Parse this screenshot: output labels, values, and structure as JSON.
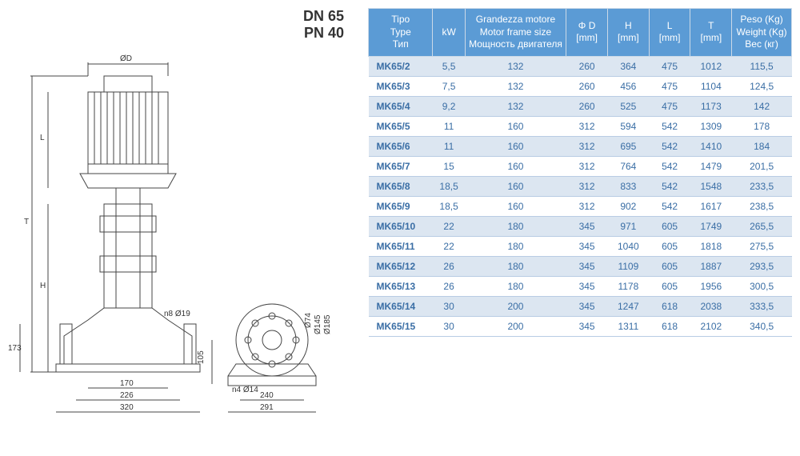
{
  "header": {
    "dn": "DN 65",
    "pn": "PN 40"
  },
  "table": {
    "header_bg": "#5b9bd5",
    "header_color": "#ffffff",
    "row_odd_bg": "#dce6f1",
    "row_even_bg": "#ffffff",
    "cell_text_color": "#3a6ea5",
    "border_color": "#b8cce4",
    "columns": [
      {
        "key": "type",
        "label": "Tipo\nType\nТип",
        "width": "14%"
      },
      {
        "key": "kw",
        "label": "kW",
        "width": "7%"
      },
      {
        "key": "motor",
        "label": "Grandezza motore\nMotor frame size\nМощность двигателя",
        "width": "22%"
      },
      {
        "key": "phid",
        "label": "Φ D\n[mm]",
        "width": "9%"
      },
      {
        "key": "h",
        "label": "H\n[mm]",
        "width": "9%"
      },
      {
        "key": "l",
        "label": "L\n[mm]",
        "width": "9%"
      },
      {
        "key": "t",
        "label": "T\n[mm]",
        "width": "9%"
      },
      {
        "key": "weight",
        "label": "Peso (Kg)\nWeight (Kg)\nВес (кг)",
        "width": "13%"
      }
    ],
    "rows": [
      [
        "MK65/2",
        "5,5",
        "132",
        "260",
        "364",
        "475",
        "1012",
        "115,5"
      ],
      [
        "MK65/3",
        "7,5",
        "132",
        "260",
        "456",
        "475",
        "1104",
        "124,5"
      ],
      [
        "MK65/4",
        "9,2",
        "132",
        "260",
        "525",
        "475",
        "1173",
        "142"
      ],
      [
        "MK65/5",
        "11",
        "160",
        "312",
        "594",
        "542",
        "1309",
        "178"
      ],
      [
        "MK65/6",
        "11",
        "160",
        "312",
        "695",
        "542",
        "1410",
        "184"
      ],
      [
        "MK65/7",
        "15",
        "160",
        "312",
        "764",
        "542",
        "1479",
        "201,5"
      ],
      [
        "MK65/8",
        "18,5",
        "160",
        "312",
        "833",
        "542",
        "1548",
        "233,5"
      ],
      [
        "MK65/9",
        "18,5",
        "160",
        "312",
        "902",
        "542",
        "1617",
        "238,5"
      ],
      [
        "MK65/10",
        "22",
        "180",
        "345",
        "971",
        "605",
        "1749",
        "265,5"
      ],
      [
        "MK65/11",
        "22",
        "180",
        "345",
        "1040",
        "605",
        "1818",
        "275,5"
      ],
      [
        "MK65/12",
        "26",
        "180",
        "345",
        "1109",
        "605",
        "1887",
        "293,5"
      ],
      [
        "MK65/13",
        "26",
        "180",
        "345",
        "1178",
        "605",
        "1956",
        "300,5"
      ],
      [
        "MK65/14",
        "30",
        "200",
        "345",
        "1247",
        "618",
        "2038",
        "333,5"
      ],
      [
        "MK65/15",
        "30",
        "200",
        "345",
        "1311",
        "618",
        "2102",
        "340,5"
      ]
    ]
  },
  "drawing": {
    "stroke": "#444444",
    "dims": {
      "phi_d": "ØD",
      "T": "T",
      "L": "L",
      "H": "H",
      "h173": "173",
      "w170": "170",
      "w226": "226",
      "w320": "320",
      "h105": "105",
      "w240": "240",
      "w291": "291",
      "n8": "n8 Ø19",
      "n4": "n4 Ø14",
      "d74": "Ø74",
      "d145": "Ø145",
      "d185": "Ø185"
    }
  }
}
